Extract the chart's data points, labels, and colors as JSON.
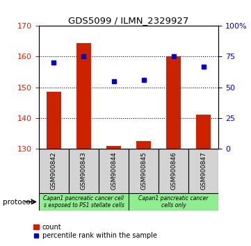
{
  "title": "GDS5099 / ILMN_2329927",
  "samples": [
    "GSM900842",
    "GSM900843",
    "GSM900844",
    "GSM900845",
    "GSM900846",
    "GSM900847"
  ],
  "counts": [
    148.5,
    164.5,
    131.0,
    132.5,
    160.0,
    141.0
  ],
  "percentile_ranks": [
    70,
    75,
    55,
    56,
    75,
    67
  ],
  "ylim_left": [
    130,
    170
  ],
  "ylim_right": [
    0,
    100
  ],
  "yticks_left": [
    130,
    140,
    150,
    160,
    170
  ],
  "yticks_right": [
    0,
    25,
    50,
    75,
    100
  ],
  "ytick_labels_right": [
    "0",
    "25",
    "50",
    "75",
    "100%"
  ],
  "bar_color": "#cc2200",
  "dot_color": "#0000cc",
  "legend_items": [
    {
      "color": "#cc2200",
      "label": "count"
    },
    {
      "color": "#0000cc",
      "label": "percentile rank within the sample"
    }
  ],
  "tick_label_color_left": "#cc2200",
  "tick_label_color_right": "#0000cc",
  "group1_label": "Capan1 pancreatic cancer cell\ns exposed to PS1 stellate cells",
  "group2_label": "Capan1 pancreatic cancer\ncells only",
  "group1_color": "#90ee90",
  "group2_color": "#90ee90",
  "protocol_label": "protocol"
}
